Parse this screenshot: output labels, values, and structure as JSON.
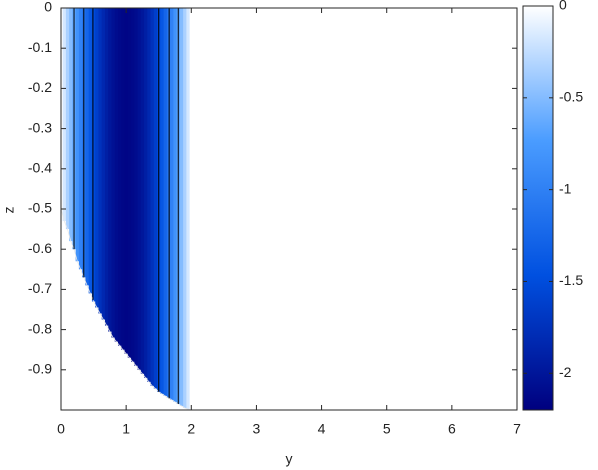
{
  "chart_data": {
    "type": "heatmap",
    "xlabel": "y",
    "ylabel": "z",
    "xlim": [
      0,
      7
    ],
    "ylim": [
      -1,
      0
    ],
    "xticks": [
      0,
      1,
      2,
      3,
      4,
      5,
      6,
      7
    ],
    "yticks": [
      0,
      -0.1,
      -0.2,
      -0.3,
      -0.4,
      -0.5,
      -0.6,
      -0.7,
      -0.8,
      -0.9
    ],
    "x": [
      0,
      0.05,
      0.1,
      0.15,
      0.2,
      0.25,
      0.3,
      0.35,
      0.4,
      0.45,
      0.5,
      0.55,
      0.6,
      0.65,
      0.7,
      0.75,
      0.8,
      0.85,
      0.9,
      0.95,
      1,
      1.05,
      1.1,
      1.15,
      1.2,
      1.25,
      1.3,
      1.35,
      1.4,
      1.45,
      1.5,
      1.55,
      1.6,
      1.65,
      1.7,
      1.75,
      1.8,
      1.85,
      1.9,
      1.95,
      2
    ],
    "values": [
      0,
      -0.17,
      -0.34,
      -0.5,
      -0.66,
      -0.82,
      -0.98,
      -1.12,
      -1.26,
      -1.4,
      -1.52,
      -1.63,
      -1.74,
      -1.83,
      -1.92,
      -1.99,
      -2.04,
      -2.09,
      -2.12,
      -2.14,
      -2.15,
      -2.14,
      -2.12,
      -2.09,
      -2.04,
      -1.99,
      -1.92,
      -1.83,
      -1.74,
      -1.63,
      -1.52,
      -1.4,
      -1.26,
      -1.12,
      -0.98,
      -0.82,
      -0.66,
      -0.5,
      -0.34,
      -0.17,
      0
    ],
    "bottom": [
      -0.5,
      -0.53,
      -0.55,
      -0.58,
      -0.6,
      -0.63,
      -0.65,
      -0.67,
      -0.69,
      -0.71,
      -0.73,
      -0.745,
      -0.76,
      -0.775,
      -0.79,
      -0.805,
      -0.82,
      -0.83,
      -0.84,
      -0.85,
      -0.86,
      -0.87,
      -0.88,
      -0.89,
      -0.9,
      -0.91,
      -0.92,
      -0.93,
      -0.94,
      -0.947,
      -0.955,
      -0.96,
      -0.965,
      -0.97,
      -0.975,
      -0.98,
      -0.985,
      -0.99,
      -0.995,
      -0.998,
      -1
    ],
    "contour_x": [
      0.2,
      0.35,
      0.49,
      1.5,
      1.66,
      1.8
    ],
    "clim": [
      -2.2,
      0
    ],
    "cticks": [
      0,
      -0.5,
      -1,
      -1.5,
      -2
    ],
    "colormap": [
      "#ffffff",
      "#4a9cff",
      "#0050e0",
      "#00007f"
    ]
  }
}
